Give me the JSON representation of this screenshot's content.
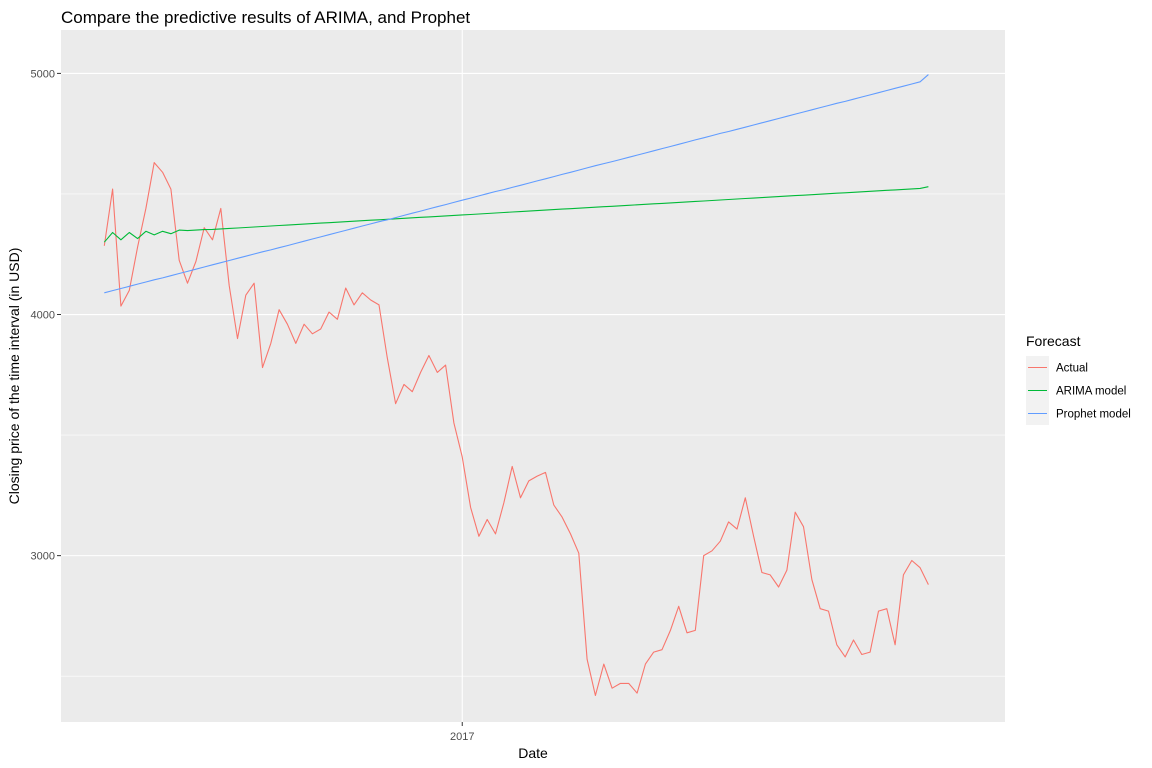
{
  "chart_data": {
    "type": "line",
    "title": "Compare the predictive results of ARIMA, and Prophet",
    "xlabel": "Date",
    "ylabel": "Closing price of the time interval (in USD)",
    "x_tick_labels": [
      {
        "label": "2017",
        "x": 43
      }
    ],
    "y_ticks": [
      3000,
      4000,
      5000
    ],
    "ylim": [
      2310,
      5180
    ],
    "xlim": [
      -5.2,
      108.2
    ],
    "grid": true,
    "legend": {
      "title": "Forecast",
      "position": "right",
      "entries": [
        "Actual",
        "ARIMA model",
        "Prophet model"
      ]
    },
    "series": [
      {
        "name": "Actual",
        "color": "#F8766D",
        "values": [
          4285,
          4520,
          4035,
          4100,
          4280,
          4440,
          4630,
          4590,
          4520,
          4225,
          4130,
          4220,
          4360,
          4310,
          4440,
          4120,
          3900,
          4080,
          4130,
          3780,
          3880,
          4020,
          3960,
          3880,
          3960,
          3920,
          3940,
          4010,
          3980,
          4110,
          4040,
          4090,
          4060,
          4040,
          3820,
          3630,
          3710,
          3680,
          3760,
          3830,
          3760,
          3790,
          3550,
          3410,
          3200,
          3080,
          3150,
          3090,
          3220,
          3370,
          3240,
          3310,
          3330,
          3345,
          3210,
          3160,
          3090,
          3010,
          2570,
          2420,
          2550,
          2450,
          2470,
          2470,
          2430,
          2550,
          2600,
          2610,
          2690,
          2790,
          2680,
          2690,
          3000,
          3020,
          3060,
          3140,
          3110,
          3240,
          3080,
          2930,
          2920,
          2870,
          2940,
          3180,
          3120,
          2900,
          2780,
          2770,
          2630,
          2580,
          2650,
          2590,
          2600,
          2770,
          2780,
          2630,
          2920,
          2980,
          2950,
          2880
        ]
      },
      {
        "name": "ARIMA model",
        "color": "#00BA38",
        "values": [
          4300,
          4340,
          4310,
          4340,
          4315,
          4345,
          4330,
          4345,
          4335,
          4350,
          4348,
          4350,
          4352,
          4353,
          4355,
          4357,
          4359,
          4361,
          4363,
          4365,
          4367,
          4369,
          4371,
          4373,
          4375,
          4377,
          4379,
          4381,
          4383,
          4385,
          4387,
          4389,
          4391,
          4393,
          4395,
          4397,
          4399,
          4401,
          4403,
          4405,
          4407,
          4409,
          4411,
          4413,
          4415,
          4417,
          4419,
          4421,
          4423,
          4425,
          4427,
          4429,
          4431,
          4433,
          4435,
          4437,
          4439,
          4441,
          4443,
          4445,
          4447,
          4449,
          4451,
          4453,
          4455,
          4457,
          4459,
          4461,
          4463,
          4465,
          4467,
          4469,
          4471,
          4473,
          4475,
          4477,
          4479,
          4481,
          4483,
          4485,
          4487,
          4489,
          4491,
          4493,
          4495,
          4497,
          4499,
          4501,
          4503,
          4505,
          4507,
          4509,
          4511,
          4513,
          4515,
          4517,
          4519,
          4521,
          4523,
          4530
        ]
      },
      {
        "name": "Prophet model",
        "color": "#619CFF",
        "values": [
          4090,
          4099,
          4108,
          4117,
          4126,
          4135,
          4144,
          4152,
          4161,
          4170,
          4179,
          4188,
          4197,
          4206,
          4215,
          4224,
          4233,
          4242,
          4251,
          4260,
          4268,
          4277,
          4286,
          4295,
          4304,
          4313,
          4322,
          4331,
          4340,
          4349,
          4358,
          4367,
          4376,
          4385,
          4393,
          4402,
          4411,
          4420,
          4429,
          4438,
          4447,
          4456,
          4465,
          4474,
          4483,
          4492,
          4501,
          4510,
          4518,
          4527,
          4536,
          4545,
          4554,
          4563,
          4572,
          4581,
          4590,
          4599,
          4608,
          4617,
          4626,
          4634,
          4643,
          4652,
          4661,
          4670,
          4679,
          4688,
          4697,
          4706,
          4715,
          4724,
          4733,
          4742,
          4751,
          4759,
          4768,
          4777,
          4786,
          4795,
          4804,
          4813,
          4822,
          4831,
          4840,
          4849,
          4858,
          4867,
          4876,
          4884,
          4893,
          4902,
          4911,
          4920,
          4929,
          4938,
          4947,
          4956,
          4965,
          4995
        ]
      }
    ]
  }
}
